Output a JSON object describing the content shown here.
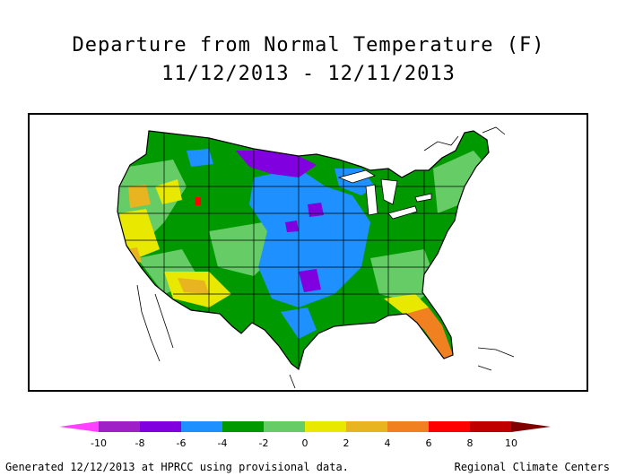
{
  "title_line1": "Departure from Normal Temperature (F)",
  "title_line2": "11/12/2013 - 12/11/2013",
  "legend": {
    "ticks": [
      "-10",
      "-8",
      "-6",
      "-4",
      "-2",
      "0",
      "2",
      "4",
      "6",
      "8",
      "10"
    ],
    "colors": [
      "#ff40ff",
      "#a020c8",
      "#8000e0",
      "#1e90ff",
      "#009a00",
      "#66cc66",
      "#e8e800",
      "#e8b420",
      "#f08020",
      "#ff0000",
      "#c00000",
      "#800000"
    ]
  },
  "footer_left": "Generated 12/12/2013 at HPRCC using provisional data.",
  "footer_right": "Regional Climate Centers"
}
